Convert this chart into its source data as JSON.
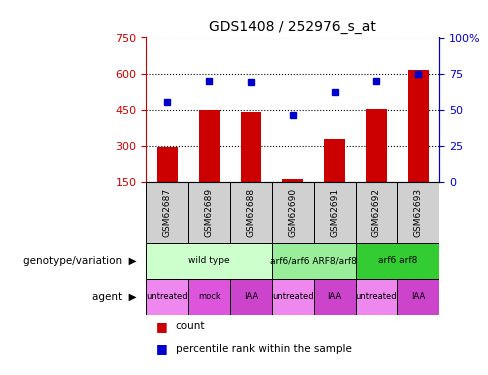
{
  "title": "GDS1408 / 252976_s_at",
  "samples": [
    "GSM62687",
    "GSM62689",
    "GSM62688",
    "GSM62690",
    "GSM62691",
    "GSM62692",
    "GSM62693"
  ],
  "counts": [
    295,
    450,
    440,
    162,
    328,
    452,
    615
  ],
  "percentiles": [
    55,
    70,
    69,
    46,
    62,
    70,
    75
  ],
  "ylim_left": [
    150,
    750
  ],
  "ylim_right": [
    0,
    100
  ],
  "yticks_left": [
    150,
    300,
    450,
    600,
    750
  ],
  "yticks_right": [
    0,
    25,
    50,
    75,
    100
  ],
  "bar_color": "#cc0000",
  "dot_color": "#0000cc",
  "bar_width": 0.5,
  "left_axis_color": "#cc0000",
  "right_axis_color": "#0000cc",
  "geno_spans": [
    {
      "start": 0,
      "end": 2,
      "label": "wild type",
      "color": "#ccffcc"
    },
    {
      "start": 3,
      "end": 4,
      "label": "arf6/arf6 ARF8/arf8",
      "color": "#99ee99"
    },
    {
      "start": 5,
      "end": 6,
      "label": "arf6 arf8",
      "color": "#33cc33"
    }
  ],
  "agent_labels": [
    "untreated",
    "mock",
    "IAA",
    "untreated",
    "IAA",
    "untreated",
    "IAA"
  ],
  "agent_colors": [
    "#ee88ee",
    "#dd55dd",
    "#cc44cc",
    "#ee88ee",
    "#cc44cc",
    "#ee88ee",
    "#cc44cc"
  ],
  "sample_cell_color": "#d0d0d0",
  "legend_bar_label": "count",
  "legend_dot_label": "percentile rank within the sample"
}
